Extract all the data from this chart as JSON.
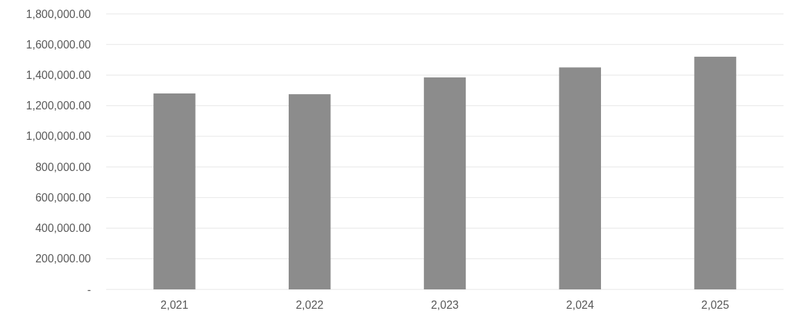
{
  "chart_data": {
    "type": "bar",
    "categories": [
      "2,021",
      "2,022",
      "2,023",
      "2,024",
      "2,025"
    ],
    "values": [
      1280000,
      1275000,
      1385000,
      1450000,
      1520000
    ],
    "color": "#8c8c8c",
    "ylim": [
      0,
      1800000
    ],
    "yticks": [
      {
        "value": 0,
        "label": "-"
      },
      {
        "value": 200000,
        "label": "200,000.00"
      },
      {
        "value": 400000,
        "label": "400,000.00"
      },
      {
        "value": 600000,
        "label": "600,000.00"
      },
      {
        "value": 800000,
        "label": "800,000.00"
      },
      {
        "value": 1000000,
        "label": "1,000,000.00"
      },
      {
        "value": 1200000,
        "label": "1,200,000.00"
      },
      {
        "value": 1400000,
        "label": "1,400,000.00"
      },
      {
        "value": 1600000,
        "label": "1,600,000.00"
      },
      {
        "value": 1800000,
        "label": "1,800,000.00"
      }
    ],
    "grid": "y"
  }
}
